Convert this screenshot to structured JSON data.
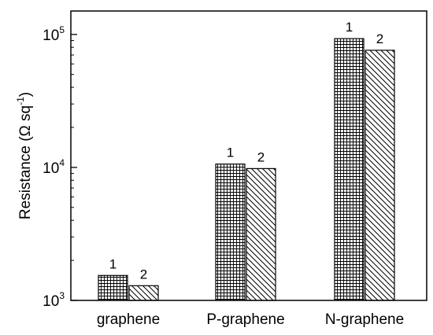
{
  "chart_data": {
    "type": "bar",
    "categories": [
      "graphene",
      "P-graphene",
      "N-graphene"
    ],
    "series": [
      {
        "label": "1",
        "pattern": "grid",
        "values": [
          1540,
          10600,
          93000
        ]
      },
      {
        "label": "2",
        "pattern": "diagonal",
        "values": [
          1290,
          9800,
          76000
        ]
      }
    ],
    "ylabel": "Resistance (Ω sq",
    "ylabel_superscript": "-1",
    "ylabel_suffix": ")",
    "y_scale": "log",
    "ylim": [
      1000,
      150000
    ],
    "y_ticks": [
      {
        "base": "10",
        "exp": "3",
        "value": 1000
      },
      {
        "base": "10",
        "exp": "4",
        "value": 10000
      },
      {
        "base": "10",
        "exp": "5",
        "value": 100000
      }
    ],
    "grid": false,
    "colors": {
      "axis": "#000000",
      "bar_fill": "#ffffff",
      "pattern": "#000000"
    }
  }
}
